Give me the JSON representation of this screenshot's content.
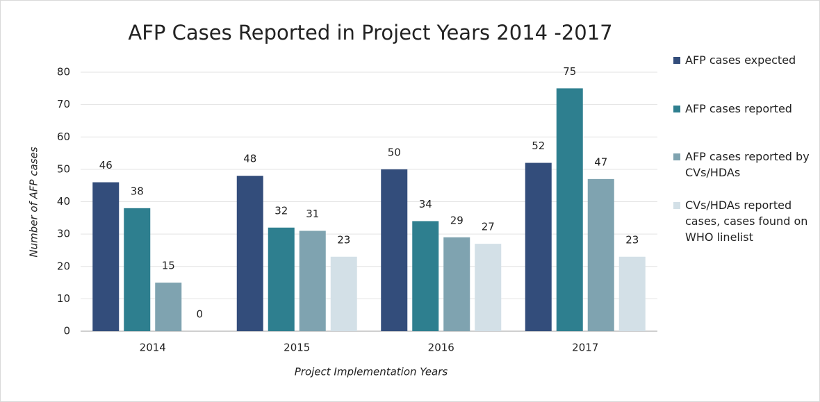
{
  "chart_data": {
    "type": "bar",
    "title": "AFP Cases Reported in Project Years 2014 -2017",
    "y_label": "Number of AFP cases",
    "x_label": "Project Implementation Years",
    "categories": [
      "2014",
      "2015",
      "2016",
      "2017"
    ],
    "series": [
      {
        "name": "AFP cases expected",
        "color": "#334d7b",
        "values": [
          46,
          48,
          50,
          52
        ]
      },
      {
        "name": "AFP cases reported",
        "color": "#2e7f8f",
        "values": [
          38,
          32,
          34,
          75
        ]
      },
      {
        "name": "AFP cases reported by CVs/HDAs",
        "color": "#7fa3b0",
        "values": [
          15,
          31,
          29,
          47
        ]
      },
      {
        "name": "CVs/HDAs reported cases, cases found on WHO linelist",
        "color": "#d3e0e7",
        "values": [
          0,
          23,
          27,
          23
        ]
      }
    ],
    "ylim": [
      0,
      80
    ],
    "yticks": [
      0,
      10,
      20,
      30,
      40,
      50,
      60,
      70,
      80
    ],
    "grid": true,
    "legend": "right"
  }
}
